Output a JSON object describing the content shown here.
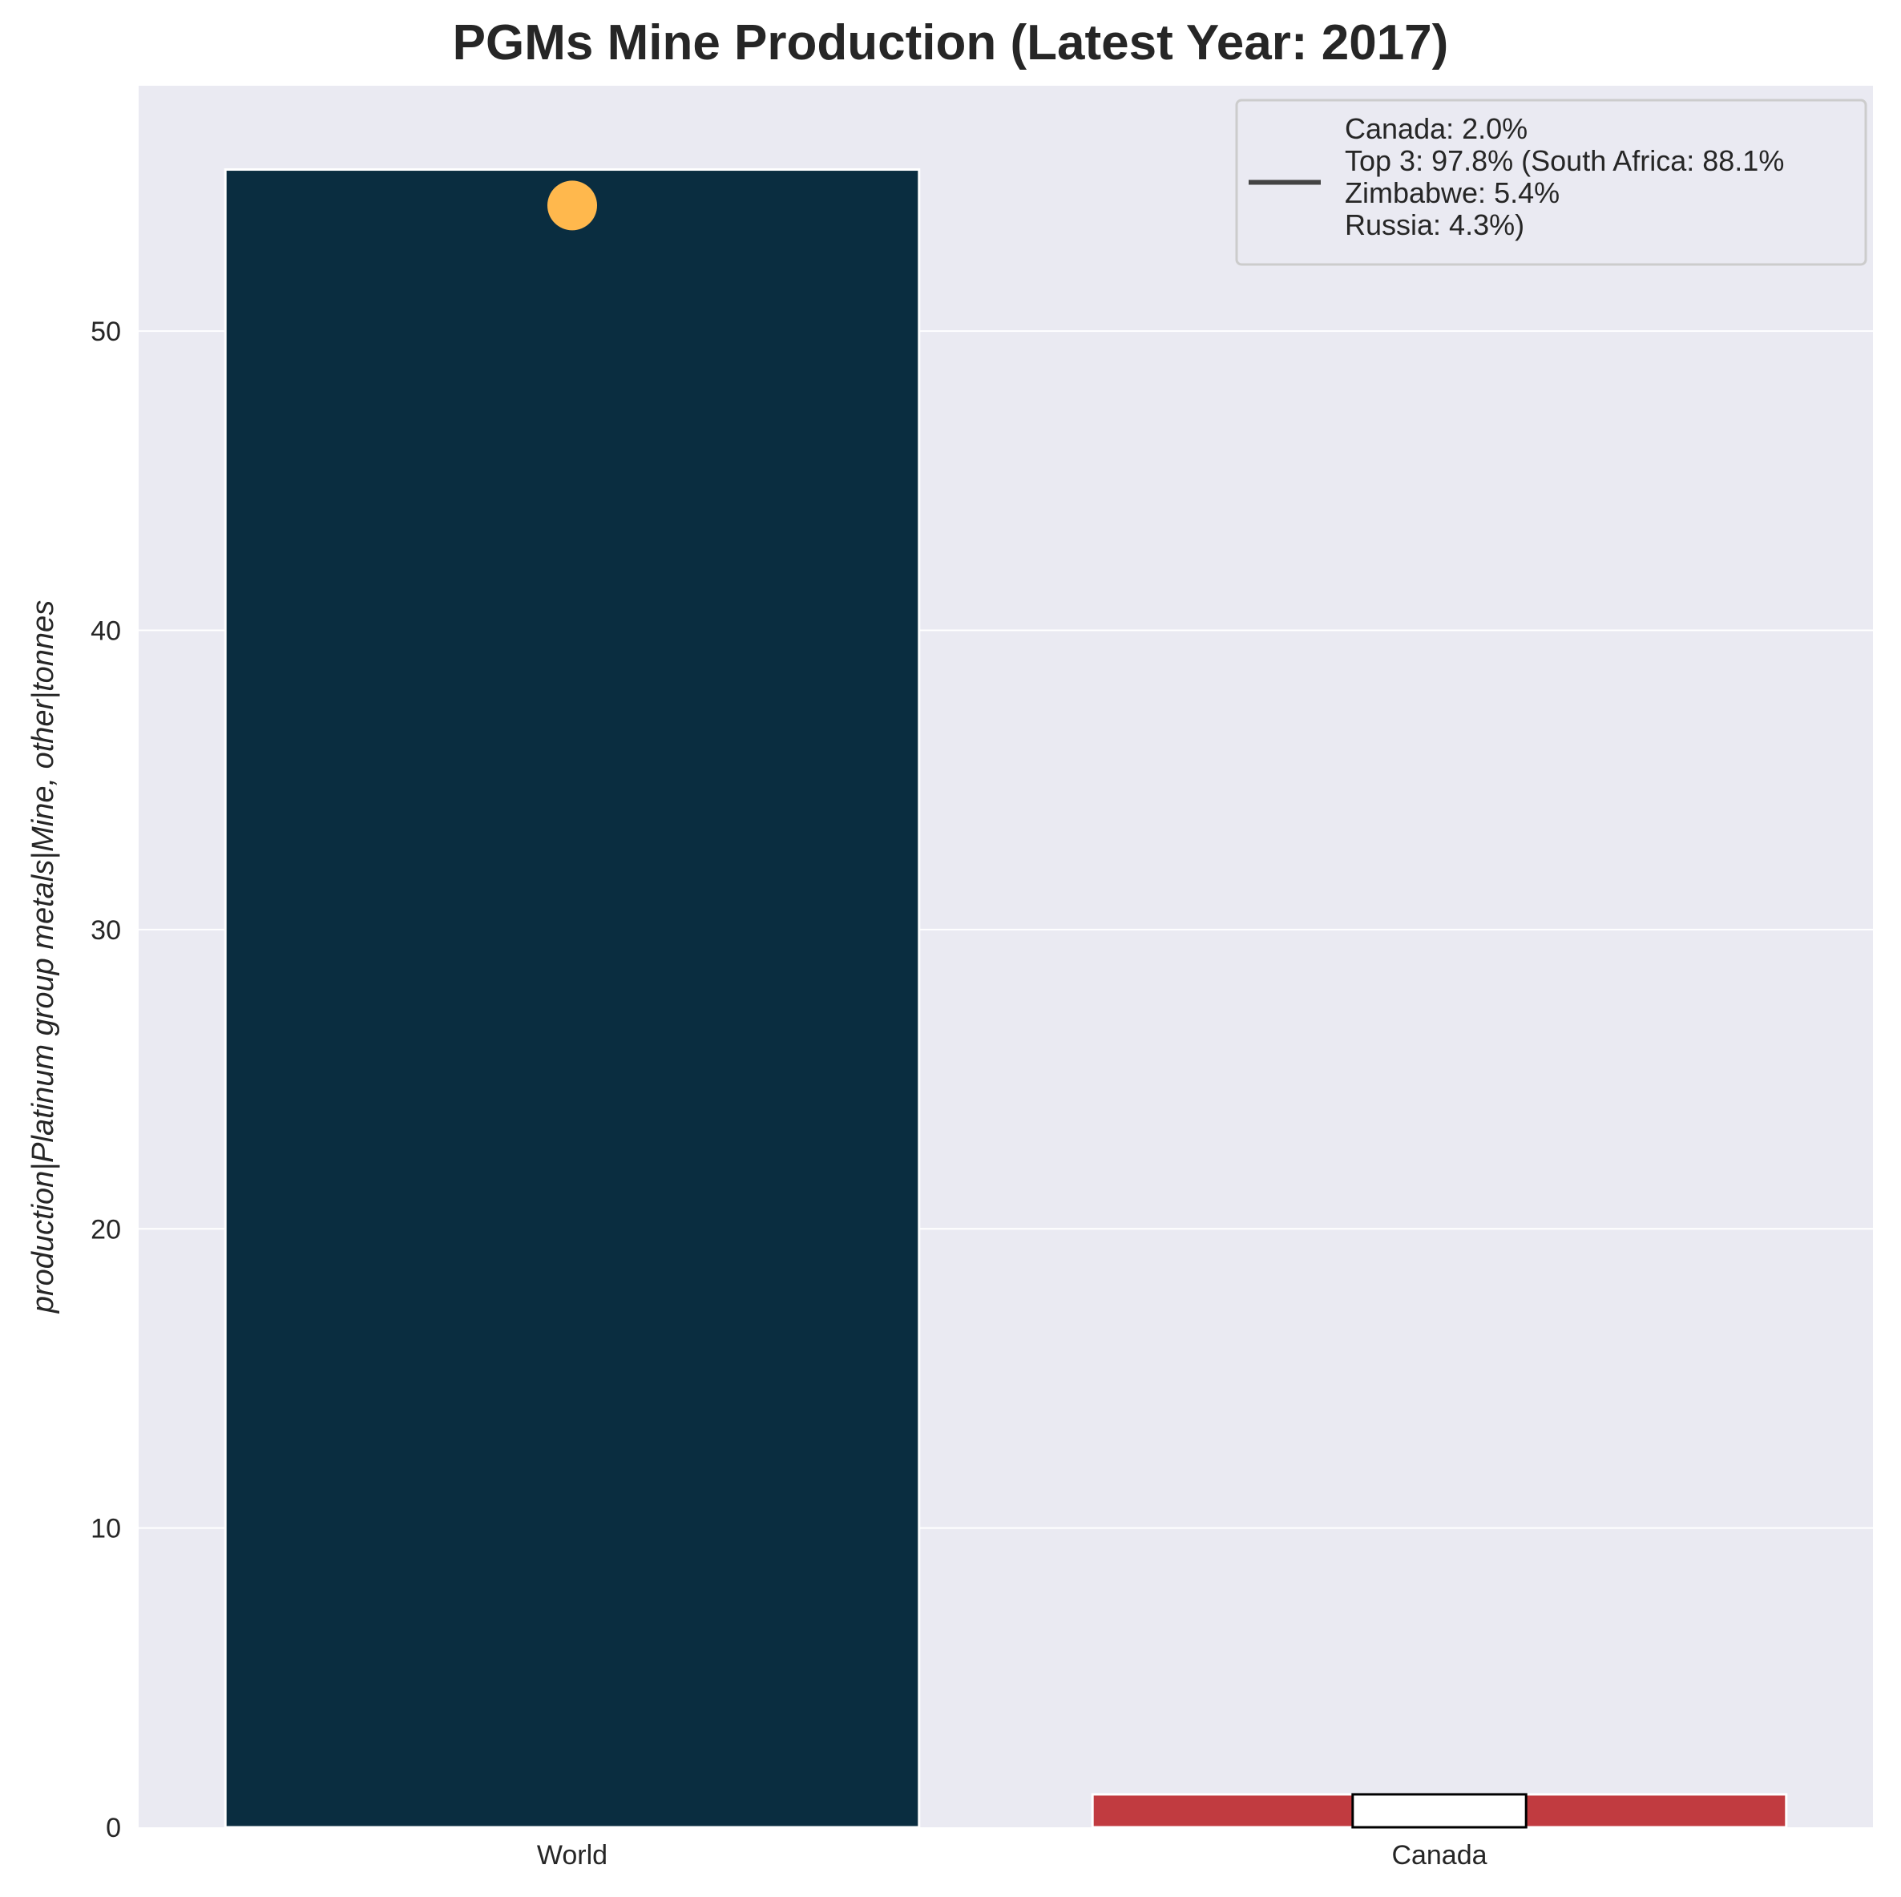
{
  "chart_data": {
    "type": "bar",
    "title": "PGMs Mine Production (Latest Year: 2017)",
    "ylabel": "production|Platinum group metals|Mine, other|tonnes",
    "xlabel": "",
    "categories": [
      "World",
      "Canada"
    ],
    "values": [
      55.4,
      1.1
    ],
    "bar_colors": [
      "#0a2d40",
      "#c13b40"
    ],
    "ylim": [
      0,
      58.2
    ],
    "yticks": [
      0,
      10,
      20,
      30,
      40,
      50
    ],
    "grid": true,
    "background": "#eaeaf2",
    "marker": {
      "category": "World",
      "y": 54.2,
      "color": "#ffb84d"
    },
    "inset_box": {
      "category": "Canada",
      "y": 1.1,
      "color": "#ffffff"
    },
    "legend": {
      "placement": "top-right",
      "lines": [
        "Canada: 2.0%",
        "Top 3: 97.8% (South Africa: 88.1%",
        "Zimbabwe: 5.4%",
        "Russia: 4.3%)"
      ]
    }
  }
}
